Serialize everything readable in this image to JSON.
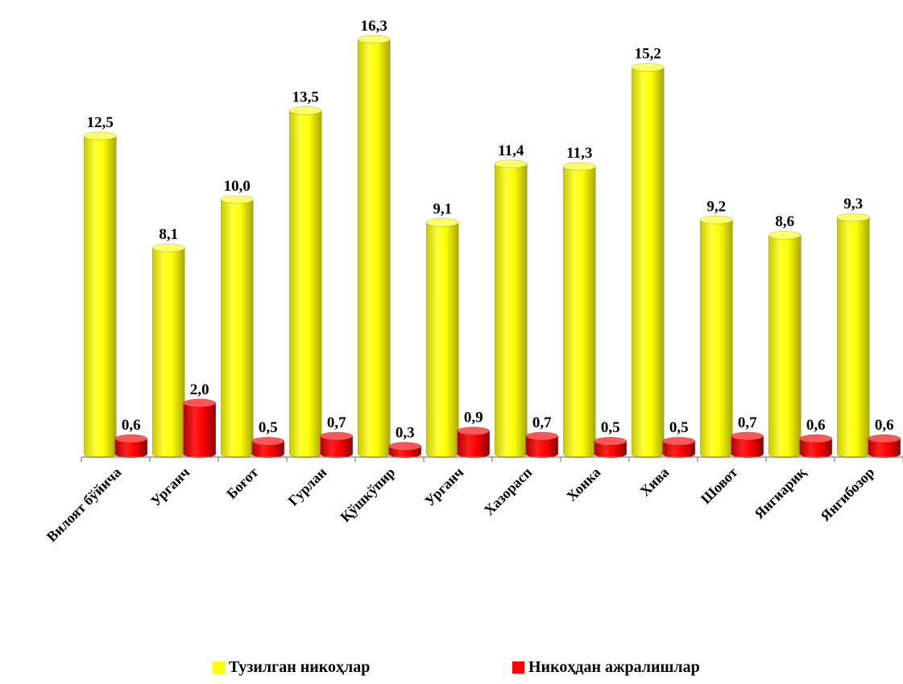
{
  "chart_data": {
    "type": "bar",
    "categories": [
      "Вилоят бўйича",
      "Урганч",
      "Боғот",
      "Гурлан",
      "Қўшкўпир",
      "Урганч",
      "Хазорасп",
      "Хонка",
      "Хива",
      "Шовот",
      "Янгиариқ",
      "Янгибозор"
    ],
    "series": [
      {
        "name": "Тузилган никоҳлар",
        "color": "#ffff00",
        "values": [
          12.5,
          8.1,
          10.0,
          13.5,
          16.3,
          9.1,
          11.4,
          11.3,
          15.2,
          9.2,
          8.6,
          9.3
        ],
        "labels": [
          "12,5",
          "8,1",
          "10,0",
          "13,5",
          "16,3",
          "9,1",
          "11,4",
          "11,3",
          "15,2",
          "9,2",
          "8,6",
          "9,3"
        ]
      },
      {
        "name": "Никоҳдан ажралишлар",
        "color": "#ff0000",
        "values": [
          0.6,
          2.0,
          0.5,
          0.7,
          0.3,
          0.9,
          0.7,
          0.5,
          0.5,
          0.7,
          0.6,
          0.6
        ],
        "labels": [
          "0,6",
          "2,0",
          "0,5",
          "0,7",
          "0,3",
          "0,9",
          "0,7",
          "0,5",
          "0,5",
          "0,7",
          "0,6",
          "0,6"
        ]
      }
    ],
    "legend_position": "bottom",
    "grid": false
  }
}
